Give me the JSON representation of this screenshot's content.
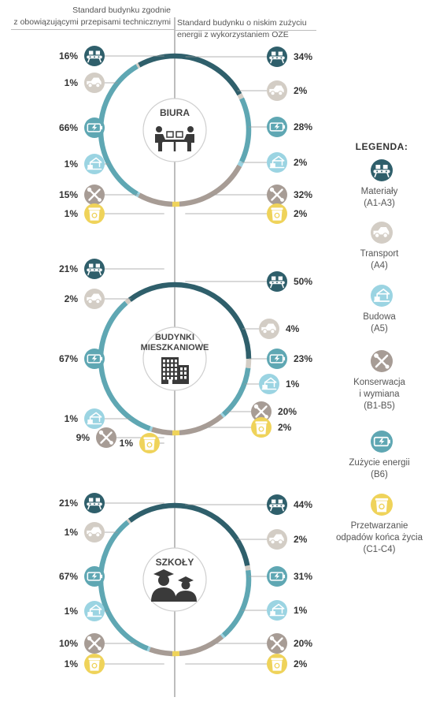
{
  "headers": {
    "left_line1": "Standard budynku zgodnie",
    "left_line2": "z obowiązującymi przepisami technicznymi",
    "right_line1": "Standard budynku o niskim zużyciu",
    "right_line2": "energii z wykorzystaniem OZE"
  },
  "colors": {
    "materials": "#2f5f6b",
    "transport": "#d3cdc5",
    "construction": "#9bd4e2",
    "maintenance": "#a79c95",
    "energy": "#5fa7b3",
    "recycling": "#efd35a"
  },
  "legend": {
    "title": "LEGENDA:",
    "items": [
      {
        "key": "materials",
        "icon": "conveyor-icon",
        "line1": "Materiały",
        "line2": "(A1-A3)"
      },
      {
        "key": "transport",
        "icon": "truck-icon",
        "line1": "Transport",
        "line2": "(A4)"
      },
      {
        "key": "construction",
        "icon": "crane-icon",
        "line1": "Budowa",
        "line2": "(A5)"
      },
      {
        "key": "maintenance",
        "icon": "tools-icon",
        "line1": "Konserwacja",
        "line2": "i wymiana",
        "line3": "(B1-B5)"
      },
      {
        "key": "energy",
        "icon": "battery-icon",
        "line1": "Zużycie energii",
        "line2": "(B6)"
      },
      {
        "key": "recycling",
        "icon": "recycle-bin-icon",
        "line1": "Przetwarzanie",
        "line2": "odpadów końca życia",
        "line3": "(C1-C4)"
      }
    ]
  },
  "chart_data": [
    {
      "type": "pie",
      "title": "BIURA",
      "categories": [
        "Materiały",
        "Transport",
        "Budowa",
        "Konserwacja i wymiana",
        "Zużycie energii",
        "Przetwarzanie odpadów końca życia"
      ],
      "series": [
        {
          "name": "Standard budynku zgodnie z obowiązującymi przepisami technicznymi",
          "values": [
            16,
            1,
            1,
            15,
            66,
            1
          ]
        },
        {
          "name": "Standard budynku o niskim zużyciu energii z wykorzystaniem OZE",
          "values": [
            34,
            2,
            2,
            32,
            28,
            2
          ]
        }
      ]
    },
    {
      "type": "pie",
      "title": "BUDYNKI MIESZKANIOWE",
      "categories": [
        "Materiały",
        "Transport",
        "Budowa",
        "Konserwacja i wymiana",
        "Zużycie energii",
        "Przetwarzanie odpadów końca życia"
      ],
      "series": [
        {
          "name": "Standard budynku zgodnie z obowiązującymi przepisami technicznymi",
          "values": [
            21,
            2,
            1,
            9,
            67,
            1
          ]
        },
        {
          "name": "Standard budynku o niskim zużyciu energii z wykorzystaniem OZE",
          "values": [
            50,
            4,
            1,
            20,
            23,
            2
          ]
        }
      ]
    },
    {
      "type": "pie",
      "title": "SZKOŁY",
      "categories": [
        "Materiały",
        "Transport",
        "Budowa",
        "Konserwacja i wymiana",
        "Zużycie energii",
        "Przetwarzanie odpadów końca życia"
      ],
      "series": [
        {
          "name": "Standard budynku zgodnie z obowiązującymi przepisami technicznymi",
          "values": [
            21,
            1,
            1,
            10,
            67,
            1
          ]
        },
        {
          "name": "Standard budynku o niskim zużyciu energii z wykorzystaniem OZE",
          "values": [
            44,
            2,
            1,
            20,
            31,
            2
          ]
        }
      ]
    }
  ],
  "sections": [
    {
      "center_icon": "office-meeting-icon",
      "left": [
        {
          "key": "materials",
          "label": "16%"
        },
        {
          "key": "transport",
          "label": "1%"
        },
        {
          "key": "energy",
          "label": "66%"
        },
        {
          "key": "construction",
          "label": "1%"
        },
        {
          "key": "maintenance",
          "label": "15%"
        },
        {
          "key": "recycling",
          "label": "1%"
        }
      ],
      "right": [
        {
          "key": "materials",
          "label": "34%"
        },
        {
          "key": "transport",
          "label": "2%"
        },
        {
          "key": "energy",
          "label": "28%"
        },
        {
          "key": "construction",
          "label": "2%"
        },
        {
          "key": "maintenance",
          "label": "32%"
        },
        {
          "key": "recycling",
          "label": "2%"
        }
      ]
    },
    {
      "center_icon": "apartment-building-icon",
      "left": [
        {
          "key": "materials",
          "label": "21%"
        },
        {
          "key": "transport",
          "label": "2%"
        },
        {
          "key": "energy",
          "label": "67%"
        },
        {
          "key": "construction",
          "label": "1%"
        },
        {
          "key": "maintenance",
          "label": "9%"
        },
        {
          "key": "recycling",
          "label": "1%"
        }
      ],
      "right": [
        {
          "key": "materials",
          "label": "50%"
        },
        {
          "key": "transport",
          "label": "4%"
        },
        {
          "key": "energy",
          "label": "23%"
        },
        {
          "key": "construction",
          "label": "1%"
        },
        {
          "key": "maintenance",
          "label": "20%"
        },
        {
          "key": "recycling",
          "label": "2%"
        }
      ]
    },
    {
      "center_icon": "graduates-icon",
      "left": [
        {
          "key": "materials",
          "label": "21%"
        },
        {
          "key": "transport",
          "label": "1%"
        },
        {
          "key": "energy",
          "label": "67%"
        },
        {
          "key": "construction",
          "label": "1%"
        },
        {
          "key": "maintenance",
          "label": "10%"
        },
        {
          "key": "recycling",
          "label": "1%"
        }
      ],
      "right": [
        {
          "key": "materials",
          "label": "44%"
        },
        {
          "key": "transport",
          "label": "2%"
        },
        {
          "key": "energy",
          "label": "31%"
        },
        {
          "key": "construction",
          "label": "1%"
        },
        {
          "key": "maintenance",
          "label": "20%"
        },
        {
          "key": "recycling",
          "label": "2%"
        }
      ]
    }
  ]
}
